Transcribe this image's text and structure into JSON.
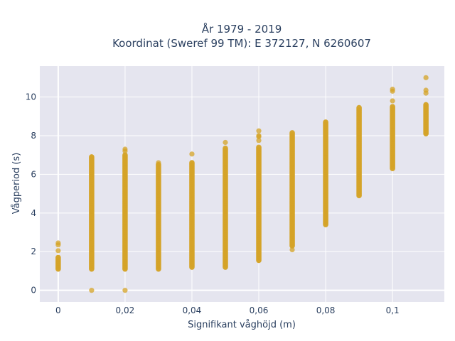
{
  "chart_data": {
    "type": "scatter",
    "title_line1": "År 1979 - 2019",
    "title_line2": "Koordinat (Sweref 99 TM): E 372127, N 6260607",
    "xlabel": "Signifikant våghöjd (m)",
    "ylabel": "Vågperiod (s)",
    "xlim": [
      -0.0055,
      0.1155
    ],
    "ylim": [
      -0.6,
      11.6
    ],
    "x_ticks": [
      0,
      0.02,
      0.04,
      0.06,
      0.08,
      0.1
    ],
    "x_tick_labels": [
      "0",
      "0,02",
      "0,04",
      "0,06",
      "0,08",
      "0,1"
    ],
    "y_ticks": [
      0,
      2,
      4,
      6,
      8,
      10
    ],
    "y_tick_labels": [
      "0",
      "2",
      "4",
      "6",
      "8",
      "10"
    ],
    "grid": true,
    "marker_color": "#d4a326",
    "plot_background": "#e5e5ef",
    "columns": [
      {
        "x": 0.0,
        "ymin": 1.1,
        "ymax": 1.7,
        "outliers": [
          2.05,
          2.35,
          2.45
        ]
      },
      {
        "x": 0.01,
        "ymin": 1.1,
        "ymax": 6.9,
        "outliers": [
          0.0
        ]
      },
      {
        "x": 0.02,
        "ymin": 1.1,
        "ymax": 7.0,
        "outliers": [
          0.0,
          7.2,
          7.3
        ]
      },
      {
        "x": 0.03,
        "ymin": 1.1,
        "ymax": 6.5,
        "outliers": [
          6.6
        ]
      },
      {
        "x": 0.04,
        "ymin": 1.2,
        "ymax": 6.6,
        "outliers": [
          7.05
        ]
      },
      {
        "x": 0.05,
        "ymin": 1.2,
        "ymax": 7.35,
        "outliers": [
          7.65
        ]
      },
      {
        "x": 0.06,
        "ymin": 1.55,
        "ymax": 7.4,
        "outliers": [
          7.75,
          7.95,
          8.0,
          8.25
        ]
      },
      {
        "x": 0.07,
        "ymin": 2.3,
        "ymax": 8.15,
        "outliers": [
          2.1
        ]
      },
      {
        "x": 0.08,
        "ymin": 3.4,
        "ymax": 8.7,
        "outliers": []
      },
      {
        "x": 0.09,
        "ymin": 4.9,
        "ymax": 9.45,
        "outliers": []
      },
      {
        "x": 0.1,
        "ymin": 6.3,
        "ymax": 9.5,
        "outliers": [
          9.8,
          10.3,
          10.4
        ]
      },
      {
        "x": 0.11,
        "ymin": 8.1,
        "ymax": 9.6,
        "outliers": [
          10.2,
          10.35,
          11.0
        ]
      }
    ]
  }
}
